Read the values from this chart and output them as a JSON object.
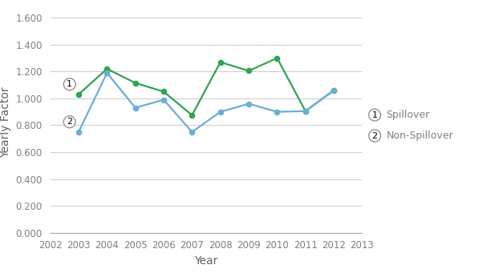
{
  "years": [
    2003,
    2004,
    2005,
    2006,
    2007,
    2008,
    2009,
    2010,
    2011,
    2012
  ],
  "spillover": [
    0.75,
    1.19,
    0.93,
    0.99,
    0.75,
    0.9,
    0.96,
    0.9,
    0.905,
    1.06
  ],
  "non_spillover": [
    1.03,
    1.22,
    1.115,
    1.05,
    0.875,
    1.27,
    1.205,
    1.3,
    0.905,
    1.06
  ],
  "spillover_color": "#6baed6",
  "non_spillover_color": "#31a354",
  "xlabel": "Year",
  "ylabel": "Yearly Factor",
  "xlim": [
    2002,
    2013
  ],
  "ylim": [
    0.0,
    1.65
  ],
  "yticks": [
    0.0,
    0.2,
    0.4,
    0.6,
    0.8,
    1.0,
    1.2,
    1.4,
    1.6
  ],
  "xticks": [
    2002,
    2003,
    2004,
    2005,
    2006,
    2007,
    2008,
    2009,
    2010,
    2011,
    2012,
    2013
  ],
  "legend_label_1": "Spillover",
  "legend_label_2": "Non-Spillover",
  "background_color": "#ffffff",
  "grid_color": "#d0d0d0",
  "tick_color": "#808080",
  "label_color": "#606060"
}
